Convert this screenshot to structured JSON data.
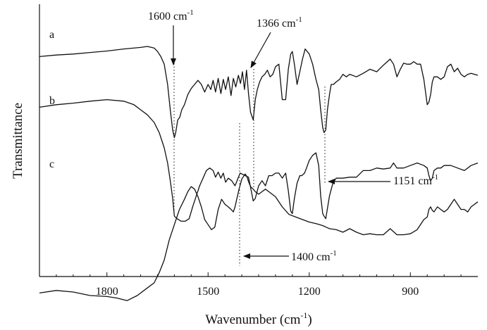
{
  "chart_data": {
    "type": "line",
    "title": "",
    "xlabel": "Wavenumber (cm",
    "xlabel_sup": "-1",
    "xlabel_suffix": ")",
    "ylabel": "Transmittance",
    "x_reversed": true,
    "xlim": [
      2000,
      700
    ],
    "y_ticks_shown": false,
    "grid": false,
    "legend": "none",
    "x_ticks": [
      1800,
      1500,
      1200,
      900
    ],
    "x_tick_labels": [
      "1800",
      "1500",
      "1200",
      "900"
    ],
    "series": [
      {
        "name": "a",
        "color": "#111111",
        "x": [
          2000,
          1950,
          1900,
          1850,
          1800,
          1750,
          1700,
          1680,
          1660,
          1650,
          1640,
          1630,
          1620,
          1612,
          1605,
          1600,
          1596,
          1590,
          1584,
          1578,
          1570,
          1560,
          1550,
          1540,
          1530,
          1520,
          1510,
          1500,
          1492,
          1485,
          1478,
          1470,
          1462,
          1455,
          1448,
          1440,
          1432,
          1425,
          1418,
          1410,
          1404,
          1398,
          1392,
          1386,
          1380,
          1374,
          1366,
          1360,
          1354,
          1347,
          1340,
          1332,
          1324,
          1316,
          1308,
          1300,
          1290,
          1280,
          1270,
          1262,
          1255,
          1250,
          1244,
          1236,
          1228,
          1220,
          1212,
          1206,
          1200,
          1190,
          1180,
          1172,
          1166,
          1160,
          1156,
          1151,
          1146,
          1140,
          1135,
          1128,
          1120,
          1110,
          1100,
          1090,
          1080,
          1060,
          1040,
          1020,
          1000,
          980,
          960,
          950,
          940,
          930,
          920,
          910,
          900,
          890,
          880,
          870,
          860,
          850,
          845,
          840,
          835,
          830,
          820,
          810,
          800,
          790,
          780,
          770,
          760,
          750,
          740,
          730,
          720,
          700
        ],
        "y": [
          45,
          42,
          40,
          37,
          34,
          30,
          27,
          25,
          28,
          35,
          45,
          60,
          100,
          150,
          190,
          205,
          195,
          170,
          165,
          150,
          140,
          120,
          108,
          100,
          92,
          100,
          115,
          100,
          110,
          92,
          115,
          88,
          118,
          90,
          110,
          85,
          122,
          88,
          105,
          82,
          98,
          75,
          110,
          72,
          118,
          155,
          170,
          130,
          110,
          95,
          85,
          80,
          72,
          85,
          80,
          65,
          60,
          130,
          130,
          70,
          40,
          35,
          60,
          100,
          75,
          50,
          30,
          35,
          40,
          60,
          90,
          110,
          150,
          185,
          195,
          190,
          150,
          120,
          100,
          100,
          95,
          90,
          80,
          85,
          80,
          85,
          78,
          70,
          75,
          62,
          50,
          60,
          85,
          70,
          58,
          60,
          60,
          55,
          60,
          60,
          90,
          140,
          135,
          120,
          95,
          85,
          85,
          90,
          85,
          65,
          60,
          75,
          68,
          80,
          85,
          80,
          78,
          82
        ]
      },
      {
        "name": "b",
        "color": "#111111",
        "x": [
          2000,
          1950,
          1900,
          1850,
          1800,
          1750,
          1720,
          1700,
          1680,
          1660,
          1645,
          1630,
          1620,
          1612,
          1605,
          1600,
          1592,
          1580,
          1568,
          1556,
          1545,
          1535,
          1525,
          1515,
          1505,
          1495,
          1485,
          1478,
          1470,
          1462,
          1455,
          1448,
          1440,
          1430,
          1420,
          1405,
          1390,
          1380,
          1372,
          1366,
          1360,
          1350,
          1340,
          1330,
          1320,
          1310,
          1300,
          1290,
          1280,
          1270,
          1262,
          1255,
          1250,
          1244,
          1236,
          1228,
          1222,
          1214,
          1208,
          1200,
          1190,
          1180,
          1172,
          1166,
          1160,
          1156,
          1151,
          1146,
          1140,
          1130,
          1120,
          1100,
          1080,
          1060,
          1040,
          1020,
          1000,
          980,
          960,
          950,
          940,
          920,
          900,
          880,
          860,
          850,
          845,
          840,
          835,
          830,
          820,
          810,
          800,
          780,
          760,
          740,
          720,
          700
        ],
        "y": [
          20,
          15,
          12,
          8,
          5,
          8,
          15,
          25,
          35,
          50,
          70,
          100,
          130,
          165,
          200,
          235,
          240,
          245,
          245,
          240,
          215,
          195,
          175,
          160,
          145,
          140,
          145,
          158,
          148,
          160,
          150,
          168,
          160,
          165,
          175,
          150,
          155,
          158,
          185,
          205,
          200,
          175,
          165,
          175,
          155,
          155,
          150,
          150,
          160,
          150,
          185,
          225,
          230,
          200,
          170,
          155,
          155,
          150,
          140,
          125,
          115,
          110,
          135,
          195,
          230,
          235,
          240,
          220,
          195,
          170,
          160,
          160,
          158,
          158,
          145,
          145,
          140,
          142,
          140,
          130,
          140,
          140,
          135,
          130,
          135,
          140,
          155,
          165,
          160,
          145,
          140,
          140,
          135,
          135,
          140,
          145,
          135,
          130
        ]
      },
      {
        "name": "c",
        "color": "#111111",
        "x": [
          2000,
          1950,
          1900,
          1850,
          1800,
          1770,
          1740,
          1710,
          1680,
          1660,
          1645,
          1630,
          1615,
          1600,
          1585,
          1570,
          1560,
          1550,
          1540,
          1530,
          1520,
          1510,
          1500,
          1490,
          1480,
          1470,
          1460,
          1450,
          1440,
          1432,
          1425,
          1420,
          1415,
          1408,
          1400,
          1395,
          1390,
          1385,
          1380,
          1374,
          1366,
          1360,
          1350,
          1340,
          1330,
          1320,
          1300,
          1280,
          1260,
          1240,
          1220,
          1200,
          1180,
          1160,
          1150,
          1140,
          1120,
          1100,
          1080,
          1060,
          1040,
          1020,
          1000,
          980,
          960,
          940,
          920,
          900,
          880,
          860,
          850,
          845,
          840,
          835,
          830,
          820,
          810,
          800,
          790,
          780,
          770,
          760,
          750,
          740,
          730,
          720,
          700
        ],
        "y": [
          245,
          240,
          243,
          250,
          252,
          255,
          260,
          250,
          235,
          225,
          205,
          180,
          140,
          110,
          80,
          60,
          45,
          35,
          40,
          55,
          75,
          100,
          110,
          120,
          115,
          80,
          60,
          70,
          75,
          80,
          85,
          75,
          60,
          40,
          20,
          15,
          10,
          15,
          25,
          35,
          40,
          45,
          50,
          45,
          40,
          45,
          55,
          75,
          90,
          95,
          100,
          105,
          108,
          112,
          115,
          118,
          120,
          125,
          118,
          125,
          130,
          128,
          130,
          130,
          118,
          130,
          130,
          128,
          120,
          100,
          95,
          80,
          75,
          82,
          85,
          75,
          80,
          85,
          80,
          70,
          60,
          70,
          80,
          80,
          85,
          75,
          65
        ]
      }
    ],
    "series_labels": [
      "a",
      "b",
      "c"
    ],
    "annotations": [
      {
        "id": "ann-1600",
        "text": "1600 cm",
        "sup": "-1",
        "x": 1600
      },
      {
        "id": "ann-1366",
        "text": "1366 cm",
        "sup": "-1",
        "x": 1366
      },
      {
        "id": "ann-1151",
        "text": "1151 cm",
        "sup": "-1",
        "x": 1151
      },
      {
        "id": "ann-1400",
        "text": "1400 cm",
        "sup": "-1",
        "x": 1400
      }
    ]
  }
}
